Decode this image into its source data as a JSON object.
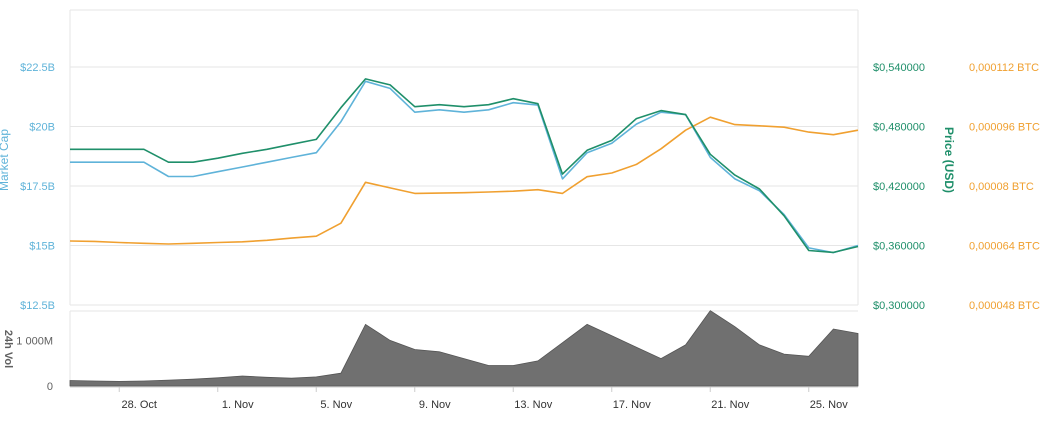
{
  "chart_data": {
    "type": "line",
    "title": "",
    "colors": {
      "market_cap": "#5fb3d9",
      "price_usd": "#1f8f6a",
      "price_btc": "#f0a030",
      "volume": "#707070",
      "grid": "#e6e6e6"
    },
    "axes": {
      "market_cap": {
        "label": "Market Cap",
        "range": [
          12.5,
          22.5
        ],
        "ticks": [
          {
            "value": 22.5,
            "label": "$22.5B"
          },
          {
            "value": 20,
            "label": "$20B"
          },
          {
            "value": 17.5,
            "label": "$17.5B"
          },
          {
            "value": 15,
            "label": "$15B"
          },
          {
            "value": 12.5,
            "label": "$12.5B"
          }
        ]
      },
      "price_usd": {
        "label": "Price (USD)",
        "range": [
          0.3,
          0.54
        ],
        "ticks": [
          {
            "value": 0.54,
            "label": "$0,540000"
          },
          {
            "value": 0.48,
            "label": "$0,480000"
          },
          {
            "value": 0.42,
            "label": "$0,420000"
          },
          {
            "value": 0.36,
            "label": "$0,360000"
          },
          {
            "value": 0.3,
            "label": "$0,300000"
          }
        ]
      },
      "price_btc": {
        "range": [
          4.8e-05,
          0.000112
        ],
        "ticks": [
          {
            "value": 0.000112,
            "label": "0,000112 BTC"
          },
          {
            "value": 9.6e-05,
            "label": "0,000096 BTC"
          },
          {
            "value": 8e-05,
            "label": "0,00008 BTC"
          },
          {
            "value": 6.4e-05,
            "label": "0,000064 BTC"
          },
          {
            "value": 4.8e-05,
            "label": "0,000048 BTC"
          }
        ]
      },
      "volume": {
        "label": "24h Vol",
        "range": [
          0,
          1600
        ],
        "unit": "M",
        "ticks": [
          {
            "value": 1000,
            "label": "1 000M"
          },
          {
            "value": 0,
            "label": "0"
          }
        ]
      },
      "x": {
        "range": [
          "2017-10-26",
          "2017-11-27"
        ],
        "ticks": [
          {
            "value": "2017-10-28",
            "label": "28. Oct"
          },
          {
            "value": "2017-11-01",
            "label": "1. Nov"
          },
          {
            "value": "2017-11-05",
            "label": "5. Nov"
          },
          {
            "value": "2017-11-09",
            "label": "9. Nov"
          },
          {
            "value": "2017-11-13",
            "label": "13. Nov"
          },
          {
            "value": "2017-11-17",
            "label": "17. Nov"
          },
          {
            "value": "2017-11-21",
            "label": "21. Nov"
          },
          {
            "value": "2017-11-25",
            "label": "25. Nov"
          }
        ]
      }
    },
    "x": [
      "2017-10-26",
      "2017-10-27",
      "2017-10-28",
      "2017-10-29",
      "2017-10-30",
      "2017-10-31",
      "2017-11-01",
      "2017-11-02",
      "2017-11-03",
      "2017-11-04",
      "2017-11-05",
      "2017-11-06",
      "2017-11-07",
      "2017-11-08",
      "2017-11-09",
      "2017-11-10",
      "2017-11-11",
      "2017-11-12",
      "2017-11-13",
      "2017-11-14",
      "2017-11-15",
      "2017-11-16",
      "2017-11-17",
      "2017-11-18",
      "2017-11-19",
      "2017-11-20",
      "2017-11-21",
      "2017-11-22",
      "2017-11-23",
      "2017-11-24",
      "2017-11-25",
      "2017-11-26",
      "2017-11-27"
    ],
    "series": [
      {
        "key": "market_cap",
        "axis": "market_cap",
        "values": [
          18.5,
          18.5,
          18.5,
          18.5,
          17.9,
          17.9,
          18.1,
          18.3,
          18.5,
          18.7,
          18.9,
          20.2,
          21.9,
          21.6,
          20.6,
          20.7,
          20.6,
          20.7,
          21.0,
          20.9,
          17.8,
          18.9,
          19.3,
          20.1,
          20.6,
          20.5,
          18.7,
          17.8,
          17.3,
          16.3,
          14.9,
          14.7,
          15.0
        ]
      },
      {
        "key": "price_usd",
        "axis": "price_usd",
        "values": [
          0.457,
          0.457,
          0.457,
          0.457,
          0.444,
          0.444,
          0.448,
          0.453,
          0.457,
          0.462,
          0.467,
          0.499,
          0.528,
          0.522,
          0.5,
          0.502,
          0.5,
          0.502,
          0.508,
          0.503,
          0.432,
          0.456,
          0.466,
          0.488,
          0.496,
          0.492,
          0.452,
          0.431,
          0.417,
          0.39,
          0.355,
          0.353,
          0.359
        ]
      },
      {
        "key": "price_btc",
        "axis": "price_btc",
        "values": [
          6.52e-05,
          6.51e-05,
          6.48e-05,
          6.46e-05,
          6.44e-05,
          6.46e-05,
          6.48e-05,
          6.5e-05,
          6.54e-05,
          6.6e-05,
          6.65e-05,
          7e-05,
          8.1e-05,
          7.95e-05,
          7.8e-05,
          7.81e-05,
          7.82e-05,
          7.84e-05,
          7.86e-05,
          7.9e-05,
          7.8e-05,
          8.25e-05,
          8.35e-05,
          8.58e-05,
          9e-05,
          9.5e-05,
          9.85e-05,
          9.65e-05,
          9.62e-05,
          9.58e-05,
          9.45e-05,
          9.38e-05,
          9.5e-05
        ]
      },
      {
        "key": "volume",
        "axis": "volume",
        "values": [
          120,
          110,
          100,
          110,
          130,
          150,
          180,
          220,
          190,
          170,
          200,
          280,
          1350,
          1000,
          800,
          750,
          600,
          450,
          450,
          550,
          950,
          1350,
          1100,
          850,
          600,
          900,
          1650,
          1300,
          900,
          700,
          650,
          1250,
          1150
        ]
      }
    ]
  }
}
